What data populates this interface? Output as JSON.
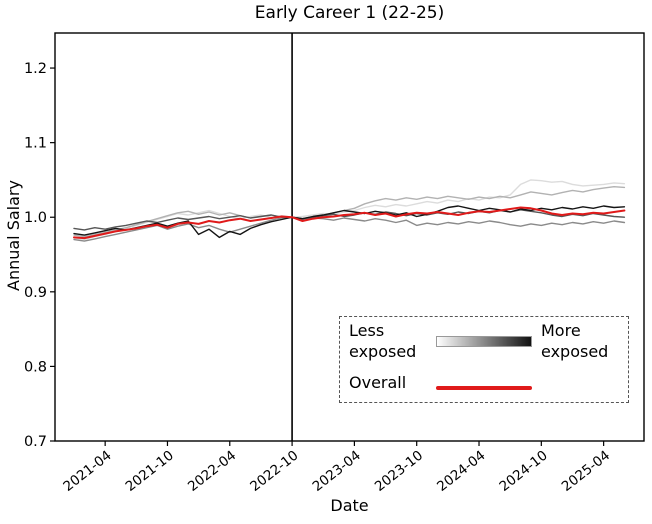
{
  "title": "Early Career 1 (22-25)",
  "xlabel": "Date",
  "ylabel": "Annual Salary",
  "legend": {
    "less_label": "Less\nexposed",
    "more_label": "More\nexposed",
    "overall_label": "Overall",
    "gradient_start_color": "#ffffff",
    "gradient_end_color": "#111111",
    "overall_color": "#e01a1a"
  },
  "chart_data": {
    "type": "line",
    "title": "Early Career 1 (22-25)",
    "xlabel": "Date",
    "ylabel": "Annual Salary",
    "ylim": [
      0.7,
      1.247
    ],
    "grid": false,
    "legend_position": "lower right",
    "yticks": [
      {
        "value": 0.7,
        "label": "0.7"
      },
      {
        "value": 0.8,
        "label": "0.8"
      },
      {
        "value": 0.9,
        "label": "0.9"
      },
      {
        "value": 1.0,
        "label": "1.0"
      },
      {
        "value": 1.1,
        "label": "1.1"
      },
      {
        "value": 1.2,
        "label": "1.2"
      }
    ],
    "xtick_labels": [
      "2021-04",
      "2021-10",
      "2022-04",
      "2022-10",
      "2023-04",
      "2023-10",
      "2024-04",
      "2024-10",
      "2025-04"
    ],
    "vline_month": "2022-10",
    "months": [
      "2021-01",
      "2021-02",
      "2021-03",
      "2021-04",
      "2021-05",
      "2021-06",
      "2021-07",
      "2021-08",
      "2021-09",
      "2021-10",
      "2021-11",
      "2021-12",
      "2022-01",
      "2022-02",
      "2022-03",
      "2022-04",
      "2022-05",
      "2022-06",
      "2022-07",
      "2022-08",
      "2022-09",
      "2022-10",
      "2022-11",
      "2022-12",
      "2023-01",
      "2023-02",
      "2023-03",
      "2023-04",
      "2023-05",
      "2023-06",
      "2023-07",
      "2023-08",
      "2023-09",
      "2023-10",
      "2023-11",
      "2023-12",
      "2024-01",
      "2024-02",
      "2024-03",
      "2024-04",
      "2024-05",
      "2024-06",
      "2024-07",
      "2024-08",
      "2024-09",
      "2024-10",
      "2024-11",
      "2024-12",
      "2025-01",
      "2025-02",
      "2025-03",
      "2025-04",
      "2025-05",
      "2025-06"
    ],
    "series": [
      {
        "name": "exposure-q1-least-exposed",
        "color": "#dcdcdc",
        "values": [
          0.972,
          0.97,
          0.974,
          0.977,
          0.981,
          0.985,
          0.989,
          0.993,
          0.997,
          1.001,
          1.005,
          1.003,
          1.006,
          1.009,
          1.005,
          1.001,
          0.998,
          1.001,
          1.003,
          1.0,
          1.002,
          1.0,
          1.001,
          1.003,
          1.005,
          1.004,
          1.007,
          1.009,
          1.013,
          1.016,
          1.014,
          1.017,
          1.015,
          1.018,
          1.021,
          1.019,
          1.023,
          1.021,
          1.025,
          1.023,
          1.027,
          1.026,
          1.03,
          1.044,
          1.05,
          1.049,
          1.047,
          1.048,
          1.044,
          1.042,
          1.043,
          1.044,
          1.046,
          1.045
        ]
      },
      {
        "name": "exposure-q2",
        "color": "#b2b2b2",
        "values": [
          0.976,
          0.974,
          0.977,
          0.98,
          0.983,
          0.986,
          0.99,
          0.994,
          0.998,
          1.002,
          1.006,
          1.008,
          1.004,
          1.007,
          1.003,
          1.006,
          1.002,
          0.999,
          1.001,
          1.003,
          1.0,
          1.0,
          0.998,
          1.001,
          1.003,
          1.006,
          1.009,
          1.012,
          1.018,
          1.022,
          1.025,
          1.023,
          1.026,
          1.024,
          1.027,
          1.025,
          1.028,
          1.026,
          1.024,
          1.027,
          1.025,
          1.028,
          1.026,
          1.03,
          1.034,
          1.032,
          1.03,
          1.033,
          1.036,
          1.034,
          1.037,
          1.039,
          1.041,
          1.04
        ]
      },
      {
        "name": "exposure-q3",
        "color": "#8a8a8a",
        "values": [
          0.97,
          0.968,
          0.971,
          0.974,
          0.977,
          0.98,
          0.983,
          0.986,
          0.989,
          0.984,
          0.988,
          0.991,
          0.986,
          0.989,
          0.984,
          0.98,
          0.984,
          0.988,
          0.992,
          0.996,
          0.999,
          1.0,
          0.997,
          0.999,
          0.998,
          0.996,
          0.999,
          0.997,
          0.995,
          0.998,
          0.996,
          0.993,
          0.996,
          0.989,
          0.992,
          0.99,
          0.993,
          0.991,
          0.994,
          0.992,
          0.995,
          0.993,
          0.99,
          0.988,
          0.991,
          0.989,
          0.992,
          0.99,
          0.993,
          0.991,
          0.994,
          0.992,
          0.995,
          0.993
        ]
      },
      {
        "name": "exposure-q4",
        "color": "#565656",
        "values": [
          0.985,
          0.983,
          0.986,
          0.984,
          0.987,
          0.989,
          0.992,
          0.995,
          0.993,
          0.996,
          0.999,
          0.997,
          0.999,
          1.001,
          0.998,
          1.0,
          1.002,
          0.999,
          1.001,
          1.003,
          1.0,
          1.0,
          0.998,
          1.0,
          1.002,
          1.004,
          1.001,
          1.003,
          1.006,
          1.004,
          1.007,
          1.005,
          1.002,
          1.005,
          1.003,
          1.006,
          1.004,
          1.007,
          1.005,
          1.008,
          1.006,
          1.009,
          1.007,
          1.01,
          1.008,
          1.006,
          1.003,
          1.001,
          1.004,
          1.002,
          1.005,
          1.003,
          1.001,
          1.0
        ]
      },
      {
        "name": "exposure-q5-most-exposed",
        "color": "#141414",
        "values": [
          0.978,
          0.976,
          0.979,
          0.982,
          0.985,
          0.983,
          0.986,
          0.989,
          0.992,
          0.988,
          0.992,
          0.995,
          0.977,
          0.984,
          0.973,
          0.981,
          0.977,
          0.985,
          0.99,
          0.994,
          0.997,
          1.0,
          0.998,
          1.001,
          1.003,
          1.006,
          1.009,
          1.007,
          1.005,
          1.008,
          1.006,
          1.003,
          1.006,
          1.001,
          1.004,
          1.008,
          1.013,
          1.015,
          1.012,
          1.009,
          1.012,
          1.01,
          1.007,
          1.011,
          1.009,
          1.012,
          1.01,
          1.013,
          1.011,
          1.014,
          1.012,
          1.015,
          1.013,
          1.014
        ]
      },
      {
        "name": "overall",
        "color": "#e01a1a",
        "values": [
          0.973,
          0.972,
          0.975,
          0.978,
          0.981,
          0.983,
          0.985,
          0.988,
          0.99,
          0.986,
          0.991,
          0.993,
          0.991,
          0.995,
          0.993,
          0.996,
          0.998,
          0.995,
          0.997,
          0.999,
          1.001,
          1.0,
          0.995,
          0.998,
          1.0,
          1.001,
          1.003,
          1.004,
          1.006,
          1.003,
          1.005,
          1.001,
          1.004,
          1.006,
          1.005,
          1.007,
          1.005,
          1.003,
          1.006,
          1.008,
          1.007,
          1.009,
          1.011,
          1.013,
          1.012,
          1.009,
          1.005,
          1.003,
          1.005,
          1.004,
          1.006,
          1.005,
          1.007,
          1.009
        ]
      }
    ]
  }
}
